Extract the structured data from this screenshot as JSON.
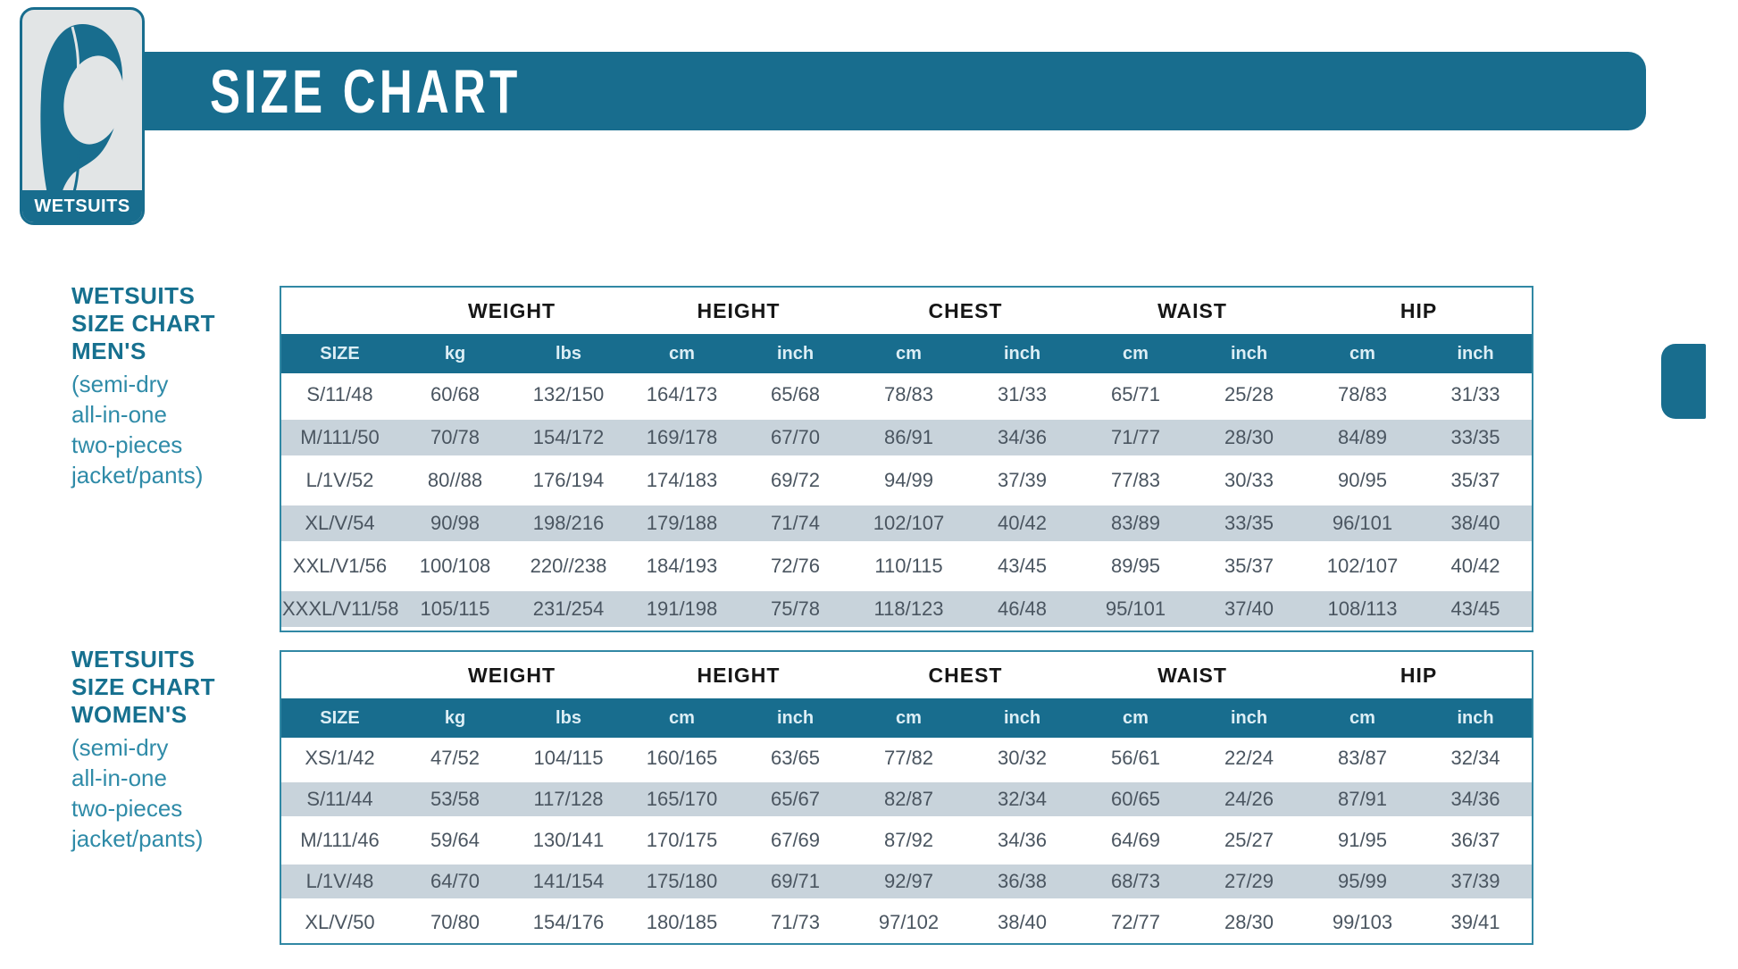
{
  "header": {
    "title": "SIZE CHART",
    "badge_label": "WETSUITS"
  },
  "colors": {
    "teal": "#186d8e",
    "table_border": "#3188a4",
    "row_alt": "#c8d3db",
    "data_text": "#4a5560",
    "group_text": "#161616",
    "unit_text": "#dceef5",
    "label_bold": "#16708f",
    "label_light": "#2f8ba8",
    "badge_bg": "#e2e5e6"
  },
  "sections": [
    {
      "label": {
        "line1": "WETSUITS",
        "line2": "SIZE CHART",
        "line3": "MEN'S",
        "sub1": "(semi-dry",
        "sub2": "all-in-one",
        "sub3": "two-pieces",
        "sub4": "jacket/pants)"
      },
      "table": {
        "size_header": "SIZE",
        "group_headers": [
          "WEIGHT",
          "HEIGHT",
          "CHEST",
          "WAIST",
          "HIP"
        ],
        "unit_headers": [
          "kg",
          "lbs",
          "cm",
          "inch",
          "cm",
          "inch",
          "cm",
          "inch",
          "cm",
          "inch"
        ],
        "rows": [
          [
            "S/11/48",
            "60/68",
            "132/150",
            "164/173",
            "65/68",
            "78/83",
            "31/33",
            "65/71",
            "25/28",
            "78/83",
            "31/33"
          ],
          [
            "M/111/50",
            "70/78",
            "154/172",
            "169/178",
            "67/70",
            "86/91",
            "34/36",
            "71/77",
            "28/30",
            "84/89",
            "33/35"
          ],
          [
            "L/1V/52",
            "80//88",
            "176/194",
            "174/183",
            "69/72",
            "94/99",
            "37/39",
            "77/83",
            "30/33",
            "90/95",
            "35/37"
          ],
          [
            "XL/V/54",
            "90/98",
            "198/216",
            "179/188",
            "71/74",
            "102/107",
            "40/42",
            "83/89",
            "33/35",
            "96/101",
            "38/40"
          ],
          [
            "XXL/V1/56",
            "100/108",
            "220//238",
            "184/193",
            "72/76",
            "110/115",
            "43/45",
            "89/95",
            "35/37",
            "102/107",
            "40/42"
          ],
          [
            "XXXL/V11/58",
            "105/115",
            "231/254",
            "191/198",
            "75/78",
            "118/123",
            "46/48",
            "95/101",
            "37/40",
            "108/113",
            "43/45"
          ]
        ]
      }
    },
    {
      "label": {
        "line1": "WETSUITS",
        "line2": "SIZE CHART",
        "line3": "WOMEN'S",
        "sub1": "(semi-dry",
        "sub2": "all-in-one",
        "sub3": "two-pieces",
        "sub4": "jacket/pants)"
      },
      "table": {
        "size_header": "SIZE",
        "group_headers": [
          "WEIGHT",
          "HEIGHT",
          "CHEST",
          "WAIST",
          "HIP"
        ],
        "unit_headers": [
          "kg",
          "lbs",
          "cm",
          "inch",
          "cm",
          "inch",
          "cm",
          "inch",
          "cm",
          "inch"
        ],
        "rows": [
          [
            "XS/1/42",
            "47/52",
            "104/115",
            "160/165",
            "63/65",
            "77/82",
            "30/32",
            "56/61",
            "22/24",
            "83/87",
            "32/34"
          ],
          [
            "S/11/44",
            "53/58",
            "117/128",
            "165/170",
            "65/67",
            "82/87",
            "32/34",
            "60/65",
            "24/26",
            "87/91",
            "34/36"
          ],
          [
            "M/111/46",
            "59/64",
            "130/141",
            "170/175",
            "67/69",
            "87/92",
            "34/36",
            "64/69",
            "25/27",
            "91/95",
            "36/37"
          ],
          [
            "L/1V/48",
            "64/70",
            "141/154",
            "175/180",
            "69/71",
            "92/97",
            "36/38",
            "68/73",
            "27/29",
            "95/99",
            "37/39"
          ],
          [
            "XL/V/50",
            "70/80",
            "154/176",
            "180/185",
            "71/73",
            "97/102",
            "38/40",
            "72/77",
            "28/30",
            "99/103",
            "39/41"
          ]
        ]
      }
    }
  ]
}
